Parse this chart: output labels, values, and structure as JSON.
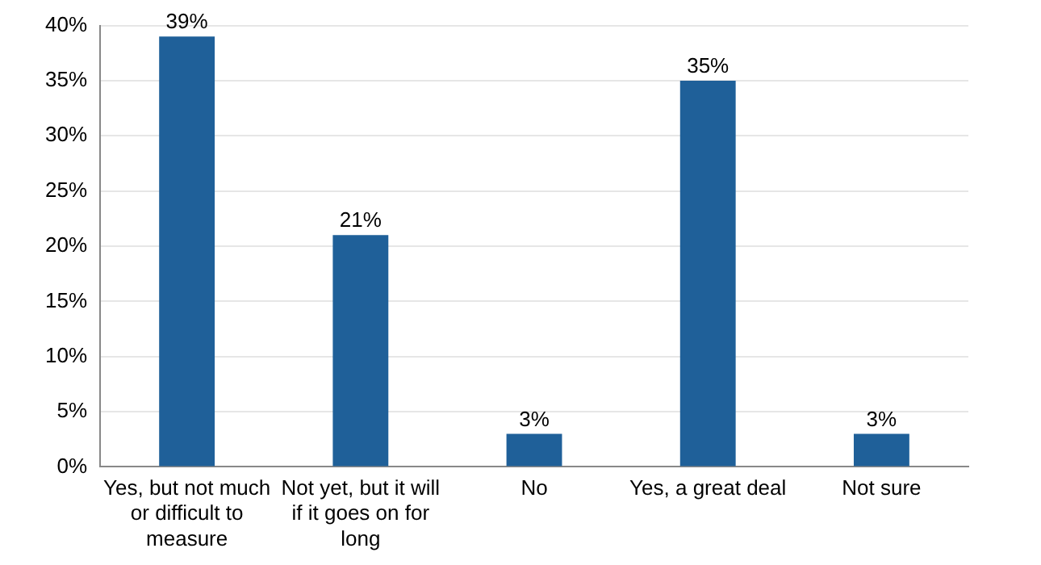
{
  "chart_data": {
    "type": "bar",
    "categories": [
      "Yes, but not much or difficult to measure",
      "Not yet, but it will if it goes on for long",
      "No",
      "Yes, a great deal",
      "Not sure"
    ],
    "values": [
      39,
      21,
      3,
      35,
      3
    ],
    "value_labels": [
      "39%",
      "21%",
      "3%",
      "35%",
      "3%"
    ],
    "color": "#1f6099",
    "ylim": [
      0,
      40
    ],
    "yticks": [
      {
        "value": 0,
        "label": "0%"
      },
      {
        "value": 5,
        "label": "5%"
      },
      {
        "value": 10,
        "label": "10%"
      },
      {
        "value": 15,
        "label": "15%"
      },
      {
        "value": 20,
        "label": "20%"
      },
      {
        "value": 25,
        "label": "25%"
      },
      {
        "value": 30,
        "label": "30%"
      },
      {
        "value": 35,
        "label": "35%"
      },
      {
        "value": 40,
        "label": "40%"
      }
    ],
    "grid": "y",
    "legend": false
  }
}
